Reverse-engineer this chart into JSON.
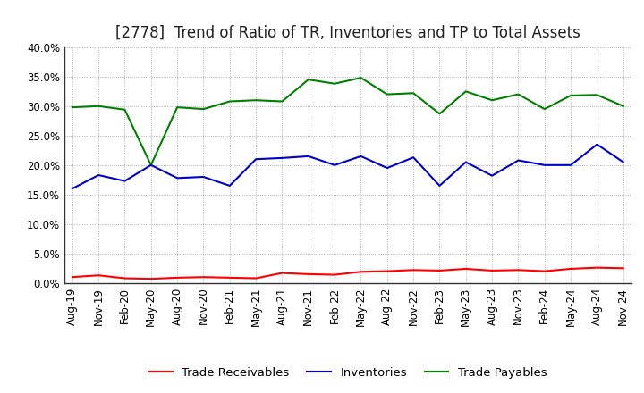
{
  "title": "[2778]  Trend of Ratio of TR, Inventories and TP to Total Assets",
  "x_labels": [
    "Aug-19",
    "Nov-19",
    "Feb-20",
    "May-20",
    "Aug-20",
    "Nov-20",
    "Feb-21",
    "May-21",
    "Aug-21",
    "Nov-21",
    "Feb-22",
    "May-22",
    "Aug-22",
    "Nov-22",
    "Feb-23",
    "May-23",
    "Aug-23",
    "Nov-23",
    "Feb-24",
    "May-24",
    "Aug-24",
    "Nov-24"
  ],
  "trade_receivables": [
    0.01,
    0.013,
    0.008,
    0.007,
    0.009,
    0.01,
    0.009,
    0.008,
    0.017,
    0.015,
    0.014,
    0.019,
    0.02,
    0.022,
    0.021,
    0.024,
    0.021,
    0.022,
    0.02,
    0.024,
    0.026,
    0.025
  ],
  "inventories": [
    0.16,
    0.183,
    0.173,
    0.2,
    0.178,
    0.18,
    0.165,
    0.21,
    0.212,
    0.215,
    0.2,
    0.215,
    0.195,
    0.213,
    0.165,
    0.205,
    0.182,
    0.208,
    0.2,
    0.2,
    0.235,
    0.205
  ],
  "trade_payables": [
    0.298,
    0.3,
    0.294,
    0.2,
    0.298,
    0.295,
    0.308,
    0.31,
    0.308,
    0.345,
    0.338,
    0.348,
    0.32,
    0.322,
    0.287,
    0.325,
    0.31,
    0.32,
    0.295,
    0.318,
    0.319,
    0.3
  ],
  "ylim": [
    0.0,
    0.4
  ],
  "yticks": [
    0.0,
    0.05,
    0.1,
    0.15,
    0.2,
    0.25,
    0.3,
    0.35,
    0.4
  ],
  "line_colors": {
    "trade_receivables": "#ff0000",
    "inventories": "#0000cc",
    "trade_payables": "#008000"
  },
  "legend_labels": [
    "Trade Receivables",
    "Inventories",
    "Trade Payables"
  ],
  "background_color": "#ffffff",
  "grid_color": "#999999",
  "title_fontsize": 12,
  "tick_fontsize": 8.5,
  "legend_fontsize": 9.5
}
